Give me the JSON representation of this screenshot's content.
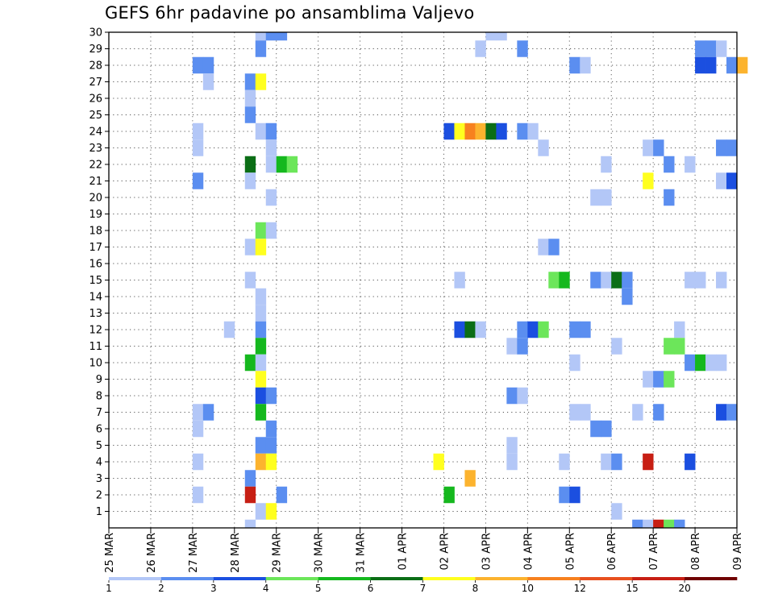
{
  "chart_data": {
    "type": "heatmap",
    "title": "GEFS 6hr padavine po ansamblima Valjevo",
    "x_tick_labels": [
      "25 MAR",
      "26 MAR",
      "27 MAR",
      "28 MAR",
      "29 MAR",
      "30 MAR",
      "31 MAR",
      "01 APR",
      "02 APR",
      "03 APR",
      "04 APR",
      "05 APR",
      "06 APR",
      "07 APR",
      "08 APR",
      "09 APR"
    ],
    "y_tick_labels": [
      "1",
      "2",
      "3",
      "4",
      "5",
      "6",
      "7",
      "8",
      "9",
      "10",
      "11",
      "12",
      "13",
      "14",
      "15",
      "16",
      "17",
      "18",
      "19",
      "20",
      "21",
      "22",
      "23",
      "24",
      "25",
      "26",
      "27",
      "28",
      "29",
      "30"
    ],
    "ylim": [
      0,
      30
    ],
    "grid": true,
    "colorbar": {
      "labels": [
        "1",
        "2",
        "3",
        "4",
        "5",
        "6",
        "7",
        "8",
        "10",
        "12",
        "15",
        "20"
      ],
      "colors": [
        "#b3c7f7",
        "#5b8ef0",
        "#1b4fe0",
        "#6ce65a",
        "#15b81e",
        "#0b6e16",
        "#ffff1f",
        "#fcb32e",
        "#f7811f",
        "#e8501f",
        "#c71f14",
        "#700000"
      ]
    },
    "cells": [
      {
        "day": "28 MAR",
        "slot": 2,
        "member": 30,
        "bin": 1
      },
      {
        "day": "28 MAR",
        "slot": 3,
        "member": 30,
        "bin": 2
      },
      {
        "day": "29 MAR",
        "slot": 0,
        "member": 30,
        "bin": 2
      },
      {
        "day": "03 APR",
        "slot": 0,
        "member": 30,
        "bin": 1
      },
      {
        "day": "03 APR",
        "slot": 1,
        "member": 30,
        "bin": 1
      },
      {
        "day": "28 MAR",
        "slot": 2,
        "member": 29,
        "bin": 2
      },
      {
        "day": "02 APR",
        "slot": 3,
        "member": 29,
        "bin": 1
      },
      {
        "day": "03 APR",
        "slot": 3,
        "member": 29,
        "bin": 2
      },
      {
        "day": "08 APR",
        "slot": 0,
        "member": 29,
        "bin": 2
      },
      {
        "day": "08 APR",
        "slot": 1,
        "member": 29,
        "bin": 2
      },
      {
        "day": "08 APR",
        "slot": 2,
        "member": 29,
        "bin": 1
      },
      {
        "day": "27 MAR",
        "slot": 0,
        "member": 28,
        "bin": 2
      },
      {
        "day": "27 MAR",
        "slot": 1,
        "member": 28,
        "bin": 2
      },
      {
        "day": "05 APR",
        "slot": 0,
        "member": 28,
        "bin": 2
      },
      {
        "day": "05 APR",
        "slot": 1,
        "member": 28,
        "bin": 1
      },
      {
        "day": "08 APR",
        "slot": 0,
        "member": 28,
        "bin": 3
      },
      {
        "day": "08 APR",
        "slot": 1,
        "member": 28,
        "bin": 3
      },
      {
        "day": "08 APR",
        "slot": 3,
        "member": 28,
        "bin": 2
      },
      {
        "day": "09 APR",
        "slot": 0,
        "member": 28,
        "bin": 8
      },
      {
        "day": "27 MAR",
        "slot": 1,
        "member": 27,
        "bin": 1
      },
      {
        "day": "28 MAR",
        "slot": 1,
        "member": 27,
        "bin": 2
      },
      {
        "day": "28 MAR",
        "slot": 2,
        "member": 27,
        "bin": 7
      },
      {
        "day": "28 MAR",
        "slot": 1,
        "member": 26,
        "bin": 1
      },
      {
        "day": "28 MAR",
        "slot": 1,
        "member": 25,
        "bin": 2
      },
      {
        "day": "27 MAR",
        "slot": 0,
        "member": 24,
        "bin": 1
      },
      {
        "day": "28 MAR",
        "slot": 2,
        "member": 24,
        "bin": 1
      },
      {
        "day": "28 MAR",
        "slot": 3,
        "member": 24,
        "bin": 2
      },
      {
        "day": "02 APR",
        "slot": 0,
        "member": 24,
        "bin": 3
      },
      {
        "day": "02 APR",
        "slot": 1,
        "member": 24,
        "bin": 7
      },
      {
        "day": "02 APR",
        "slot": 2,
        "member": 24,
        "bin": 9
      },
      {
        "day": "02 APR",
        "slot": 3,
        "member": 24,
        "bin": 8
      },
      {
        "day": "03 APR",
        "slot": 0,
        "member": 24,
        "bin": 6
      },
      {
        "day": "03 APR",
        "slot": 1,
        "member": 24,
        "bin": 3
      },
      {
        "day": "03 APR",
        "slot": 3,
        "member": 24,
        "bin": 2
      },
      {
        "day": "04 APR",
        "slot": 0,
        "member": 24,
        "bin": 1
      },
      {
        "day": "27 MAR",
        "slot": 0,
        "member": 23,
        "bin": 1
      },
      {
        "day": "28 MAR",
        "slot": 3,
        "member": 23,
        "bin": 1
      },
      {
        "day": "04 APR",
        "slot": 1,
        "member": 23,
        "bin": 1
      },
      {
        "day": "06 APR",
        "slot": 3,
        "member": 23,
        "bin": 1
      },
      {
        "day": "07 APR",
        "slot": 0,
        "member": 23,
        "bin": 2
      },
      {
        "day": "08 APR",
        "slot": 2,
        "member": 23,
        "bin": 2
      },
      {
        "day": "08 APR",
        "slot": 3,
        "member": 23,
        "bin": 2
      },
      {
        "day": "28 MAR",
        "slot": 1,
        "member": 22,
        "bin": 6
      },
      {
        "day": "28 MAR",
        "slot": 3,
        "member": 22,
        "bin": 1
      },
      {
        "day": "29 MAR",
        "slot": 0,
        "member": 22,
        "bin": 5
      },
      {
        "day": "29 MAR",
        "slot": 1,
        "member": 22,
        "bin": 4
      },
      {
        "day": "05 APR",
        "slot": 3,
        "member": 22,
        "bin": 1
      },
      {
        "day": "07 APR",
        "slot": 1,
        "member": 22,
        "bin": 2
      },
      {
        "day": "07 APR",
        "slot": 3,
        "member": 22,
        "bin": 1
      },
      {
        "day": "27 MAR",
        "slot": 0,
        "member": 21,
        "bin": 2
      },
      {
        "day": "28 MAR",
        "slot": 1,
        "member": 21,
        "bin": 1
      },
      {
        "day": "06 APR",
        "slot": 3,
        "member": 21,
        "bin": 7
      },
      {
        "day": "08 APR",
        "slot": 2,
        "member": 21,
        "bin": 1
      },
      {
        "day": "08 APR",
        "slot": 3,
        "member": 21,
        "bin": 3
      },
      {
        "day": "28 MAR",
        "slot": 3,
        "member": 20,
        "bin": 1
      },
      {
        "day": "05 APR",
        "slot": 2,
        "member": 20,
        "bin": 1
      },
      {
        "day": "05 APR",
        "slot": 3,
        "member": 20,
        "bin": 1
      },
      {
        "day": "07 APR",
        "slot": 1,
        "member": 20,
        "bin": 2
      },
      {
        "day": "28 MAR",
        "slot": 2,
        "member": 18,
        "bin": 4
      },
      {
        "day": "28 MAR",
        "slot": 3,
        "member": 18,
        "bin": 1
      },
      {
        "day": "28 MAR",
        "slot": 1,
        "member": 17,
        "bin": 1
      },
      {
        "day": "28 MAR",
        "slot": 2,
        "member": 17,
        "bin": 7
      },
      {
        "day": "04 APR",
        "slot": 1,
        "member": 17,
        "bin": 1
      },
      {
        "day": "04 APR",
        "slot": 2,
        "member": 17,
        "bin": 2
      },
      {
        "day": "28 MAR",
        "slot": 1,
        "member": 15,
        "bin": 1
      },
      {
        "day": "02 APR",
        "slot": 1,
        "member": 15,
        "bin": 1
      },
      {
        "day": "04 APR",
        "slot": 2,
        "member": 15,
        "bin": 4
      },
      {
        "day": "04 APR",
        "slot": 3,
        "member": 15,
        "bin": 5
      },
      {
        "day": "05 APR",
        "slot": 2,
        "member": 15,
        "bin": 2
      },
      {
        "day": "05 APR",
        "slot": 3,
        "member": 15,
        "bin": 1
      },
      {
        "day": "06 APR",
        "slot": 0,
        "member": 15,
        "bin": 6
      },
      {
        "day": "06 APR",
        "slot": 1,
        "member": 15,
        "bin": 2
      },
      {
        "day": "07 APR",
        "slot": 3,
        "member": 15,
        "bin": 1
      },
      {
        "day": "08 APR",
        "slot": 0,
        "member": 15,
        "bin": 1
      },
      {
        "day": "08 APR",
        "slot": 2,
        "member": 15,
        "bin": 1
      },
      {
        "day": "28 MAR",
        "slot": 2,
        "member": 14,
        "bin": 1
      },
      {
        "day": "06 APR",
        "slot": 1,
        "member": 14,
        "bin": 2
      },
      {
        "day": "28 MAR",
        "slot": 2,
        "member": 13,
        "bin": 1
      },
      {
        "day": "27 MAR",
        "slot": 3,
        "member": 12,
        "bin": 1
      },
      {
        "day": "28 MAR",
        "slot": 2,
        "member": 12,
        "bin": 2
      },
      {
        "day": "02 APR",
        "slot": 1,
        "member": 12,
        "bin": 3
      },
      {
        "day": "02 APR",
        "slot": 2,
        "member": 12,
        "bin": 6
      },
      {
        "day": "02 APR",
        "slot": 3,
        "member": 12,
        "bin": 1
      },
      {
        "day": "03 APR",
        "slot": 3,
        "member": 12,
        "bin": 2
      },
      {
        "day": "04 APR",
        "slot": 0,
        "member": 12,
        "bin": 3
      },
      {
        "day": "04 APR",
        "slot": 1,
        "member": 12,
        "bin": 4
      },
      {
        "day": "05 APR",
        "slot": 0,
        "member": 12,
        "bin": 2
      },
      {
        "day": "05 APR",
        "slot": 1,
        "member": 12,
        "bin": 2
      },
      {
        "day": "07 APR",
        "slot": 2,
        "member": 12,
        "bin": 1
      },
      {
        "day": "28 MAR",
        "slot": 2,
        "member": 11,
        "bin": 5
      },
      {
        "day": "03 APR",
        "slot": 2,
        "member": 11,
        "bin": 1
      },
      {
        "day": "03 APR",
        "slot": 3,
        "member": 11,
        "bin": 2
      },
      {
        "day": "06 APR",
        "slot": 0,
        "member": 11,
        "bin": 1
      },
      {
        "day": "07 APR",
        "slot": 1,
        "member": 11,
        "bin": 4
      },
      {
        "day": "07 APR",
        "slot": 2,
        "member": 11,
        "bin": 4
      },
      {
        "day": "28 MAR",
        "slot": 1,
        "member": 10,
        "bin": 5
      },
      {
        "day": "28 MAR",
        "slot": 2,
        "member": 10,
        "bin": 1
      },
      {
        "day": "05 APR",
        "slot": 0,
        "member": 10,
        "bin": 1
      },
      {
        "day": "07 APR",
        "slot": 3,
        "member": 10,
        "bin": 2
      },
      {
        "day": "08 APR",
        "slot": 0,
        "member": 10,
        "bin": 5
      },
      {
        "day": "08 APR",
        "slot": 1,
        "member": 10,
        "bin": 1
      },
      {
        "day": "08 APR",
        "slot": 2,
        "member": 10,
        "bin": 1
      },
      {
        "day": "28 MAR",
        "slot": 2,
        "member": 9,
        "bin": 7
      },
      {
        "day": "06 APR",
        "slot": 3,
        "member": 9,
        "bin": 1
      },
      {
        "day": "07 APR",
        "slot": 0,
        "member": 9,
        "bin": 2
      },
      {
        "day": "07 APR",
        "slot": 1,
        "member": 9,
        "bin": 4
      },
      {
        "day": "28 MAR",
        "slot": 2,
        "member": 8,
        "bin": 3
      },
      {
        "day": "28 MAR",
        "slot": 3,
        "member": 8,
        "bin": 2
      },
      {
        "day": "03 APR",
        "slot": 2,
        "member": 8,
        "bin": 2
      },
      {
        "day": "03 APR",
        "slot": 3,
        "member": 8,
        "bin": 1
      },
      {
        "day": "27 MAR",
        "slot": 0,
        "member": 7,
        "bin": 1
      },
      {
        "day": "27 MAR",
        "slot": 1,
        "member": 7,
        "bin": 2
      },
      {
        "day": "28 MAR",
        "slot": 2,
        "member": 7,
        "bin": 5
      },
      {
        "day": "05 APR",
        "slot": 0,
        "member": 7,
        "bin": 1
      },
      {
        "day": "05 APR",
        "slot": 1,
        "member": 7,
        "bin": 1
      },
      {
        "day": "06 APR",
        "slot": 2,
        "member": 7,
        "bin": 1
      },
      {
        "day": "07 APR",
        "slot": 0,
        "member": 7,
        "bin": 2
      },
      {
        "day": "08 APR",
        "slot": 2,
        "member": 7,
        "bin": 3
      },
      {
        "day": "08 APR",
        "slot": 3,
        "member": 7,
        "bin": 2
      },
      {
        "day": "27 MAR",
        "slot": 0,
        "member": 6,
        "bin": 1
      },
      {
        "day": "28 MAR",
        "slot": 3,
        "member": 6,
        "bin": 2
      },
      {
        "day": "05 APR",
        "slot": 2,
        "member": 6,
        "bin": 2
      },
      {
        "day": "05 APR",
        "slot": 3,
        "member": 6,
        "bin": 2
      },
      {
        "day": "28 MAR",
        "slot": 2,
        "member": 5,
        "bin": 2
      },
      {
        "day": "28 MAR",
        "slot": 3,
        "member": 5,
        "bin": 2
      },
      {
        "day": "03 APR",
        "slot": 2,
        "member": 5,
        "bin": 1
      },
      {
        "day": "27 MAR",
        "slot": 0,
        "member": 4,
        "bin": 1
      },
      {
        "day": "28 MAR",
        "slot": 2,
        "member": 4,
        "bin": 8
      },
      {
        "day": "28 MAR",
        "slot": 3,
        "member": 4,
        "bin": 7
      },
      {
        "day": "01 APR",
        "slot": 3,
        "member": 4,
        "bin": 7
      },
      {
        "day": "03 APR",
        "slot": 2,
        "member": 4,
        "bin": 1
      },
      {
        "day": "04 APR",
        "slot": 3,
        "member": 4,
        "bin": 1
      },
      {
        "day": "05 APR",
        "slot": 3,
        "member": 4,
        "bin": 1
      },
      {
        "day": "06 APR",
        "slot": 0,
        "member": 4,
        "bin": 2
      },
      {
        "day": "06 APR",
        "slot": 3,
        "member": 4,
        "bin": 11
      },
      {
        "day": "07 APR",
        "slot": 3,
        "member": 4,
        "bin": 3
      },
      {
        "day": "28 MAR",
        "slot": 1,
        "member": 3,
        "bin": 2
      },
      {
        "day": "02 APR",
        "slot": 2,
        "member": 3,
        "bin": 8
      },
      {
        "day": "27 MAR",
        "slot": 0,
        "member": 2,
        "bin": 1
      },
      {
        "day": "28 MAR",
        "slot": 1,
        "member": 2,
        "bin": 11
      },
      {
        "day": "29 MAR",
        "slot": 0,
        "member": 2,
        "bin": 2
      },
      {
        "day": "02 APR",
        "slot": 0,
        "member": 2,
        "bin": 5
      },
      {
        "day": "04 APR",
        "slot": 3,
        "member": 2,
        "bin": 2
      },
      {
        "day": "05 APR",
        "slot": 0,
        "member": 2,
        "bin": 3
      },
      {
        "day": "28 MAR",
        "slot": 2,
        "member": 1,
        "bin": 1
      },
      {
        "day": "28 MAR",
        "slot": 3,
        "member": 1,
        "bin": 7
      },
      {
        "day": "06 APR",
        "slot": 0,
        "member": 1,
        "bin": 1
      },
      {
        "day": "28 MAR",
        "slot": 1,
        "member": 0,
        "bin": 1
      },
      {
        "day": "06 APR",
        "slot": 2,
        "member": 0,
        "bin": 2
      },
      {
        "day": "06 APR",
        "slot": 3,
        "member": 0,
        "bin": 1
      },
      {
        "day": "07 APR",
        "slot": 0,
        "member": 0,
        "bin": 11
      },
      {
        "day": "07 APR",
        "slot": 1,
        "member": 0,
        "bin": 4
      },
      {
        "day": "07 APR",
        "slot": 2,
        "member": 0,
        "bin": 2
      }
    ]
  }
}
